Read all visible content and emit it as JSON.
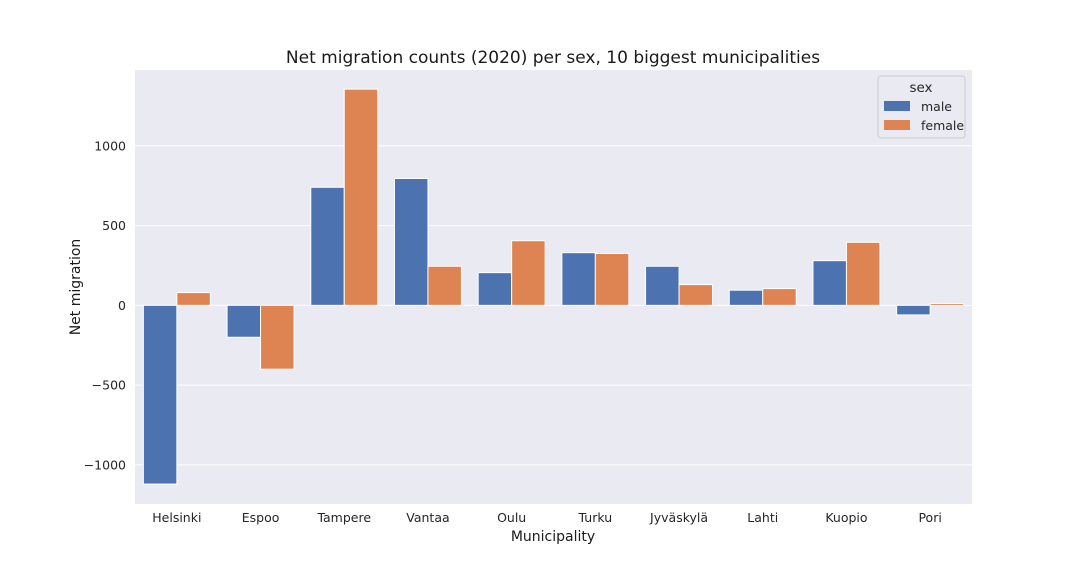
{
  "chart_data": {
    "type": "bar",
    "title": "Net migration counts (2020) per sex, 10 biggest municipalities",
    "xlabel": "Municipality",
    "ylabel": "Net migration",
    "categories": [
      "Helsinki",
      "Espoo",
      "Tampere",
      "Vantaa",
      "Oulu",
      "Turku",
      "Jyväskylä",
      "Lahti",
      "Kuopio",
      "Pori"
    ],
    "series": [
      {
        "name": "male",
        "color": "#4c72b0",
        "values": [
          -1120,
          -200,
          740,
          795,
          205,
          330,
          245,
          95,
          280,
          -60
        ]
      },
      {
        "name": "female",
        "color": "#dd8452",
        "values": [
          80,
          -400,
          1355,
          245,
          405,
          325,
          130,
          105,
          395,
          12
        ]
      }
    ],
    "ylim": [
      -1245,
      1475
    ],
    "yticks": [
      -1000,
      -500,
      0,
      500,
      1000
    ],
    "ytick_labels": [
      "−1000",
      "−500",
      "0",
      "500",
      "1000"
    ],
    "grid": true,
    "legend": {
      "title": "sex",
      "placement": "top-right"
    },
    "background": "#eaeaf2"
  }
}
